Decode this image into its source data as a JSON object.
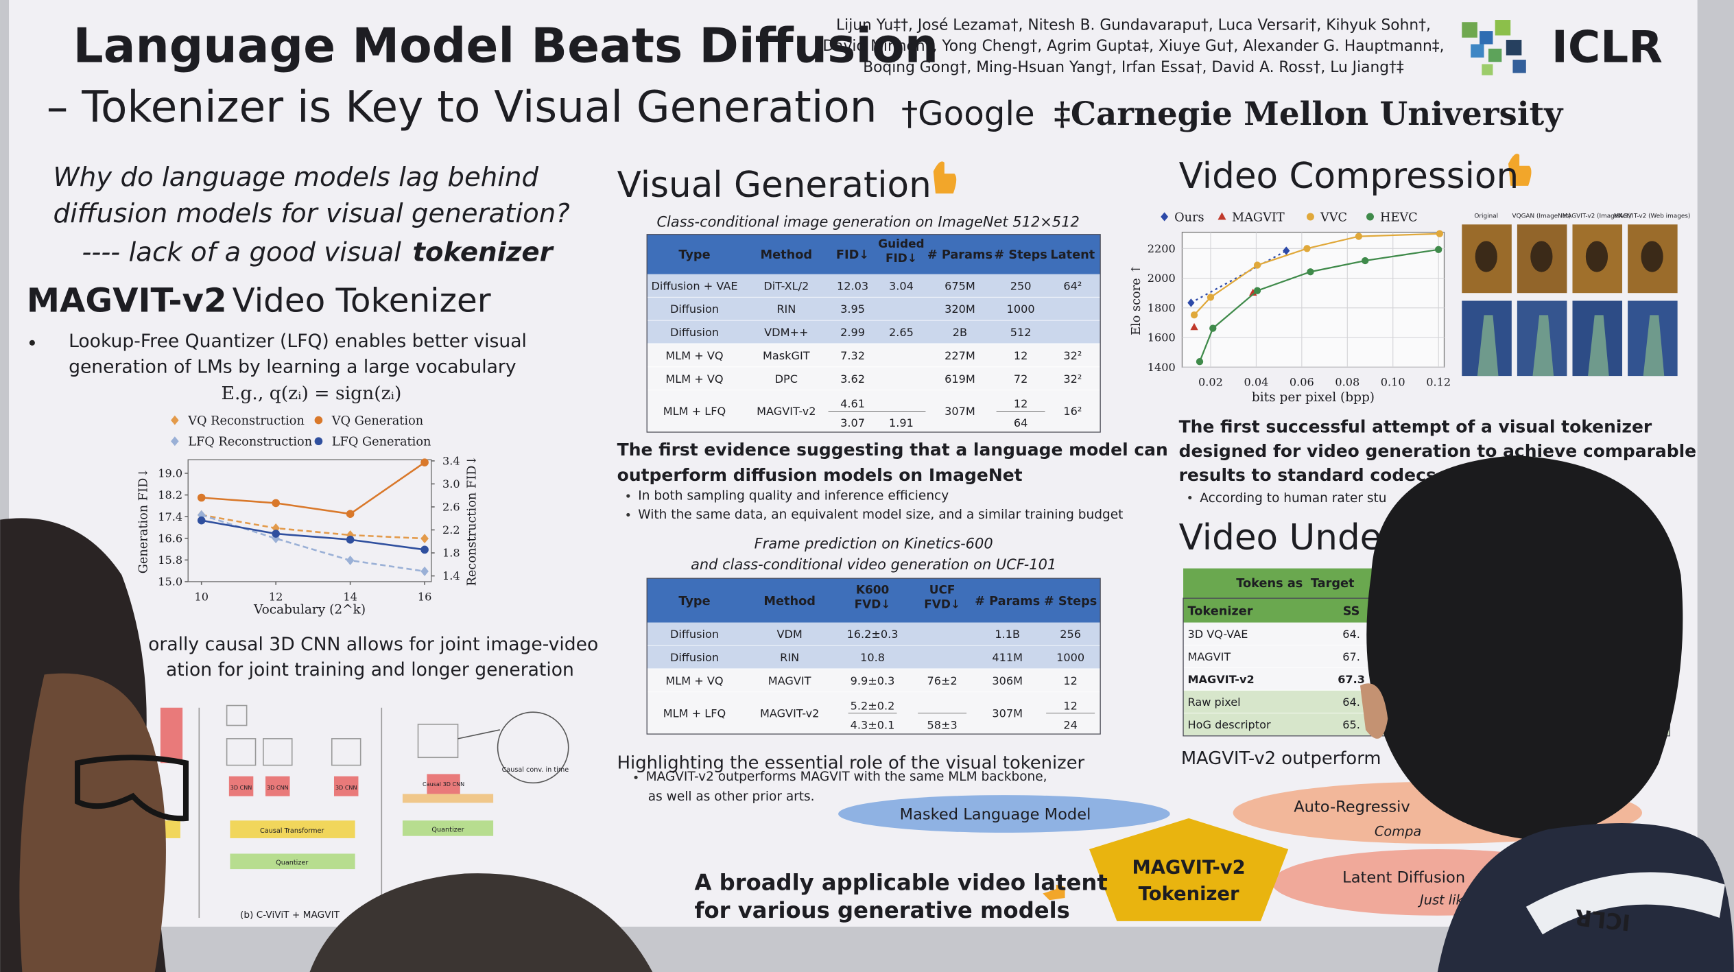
{
  "header": {
    "title": [
      "Language Model Beats Diffusion",
      "– Tokenizer is Key to Visual Generation"
    ],
    "authors": [
      "Lijun Yu‡†, José Lezama†, Nitesh B. Gundavarapu†, Luca Versari†, Kihyuk Sohn†,",
      "David Minnen†, Yong Cheng†, Agrim Gupta‡, Xiuye Gu†, Alexander G. Hauptmann‡,",
      "Boqing Gong†, Ming-Hsuan Yang†, Irfan Essa†, David A. Ross†, Lu Jiang†‡"
    ],
    "affiliations": [
      "†Google",
      "‡Carnegie Mellon University"
    ],
    "conference": "ICLR"
  },
  "intro": {
    "question": [
      "Why do language models lag behind",
      "diffusion models for visual generation?",
      "---- lack of a good visual"
    ],
    "emphasis": "tokenizer"
  },
  "tokenizer": {
    "title_bold": "MAGVIT-v2",
    "title_rest": "Video Tokenizer",
    "bullet1": [
      "Lookup-Free Quantizer (LFQ) enables better visual",
      "generation of LMs by learning a large vocabulary",
      "E.g., q(zᵢ) = sign(zᵢ)"
    ],
    "bullet2": [
      "orally causal 3D CNN allows for joint image-video",
      "ation for joint training and longer generation"
    ],
    "diagram": {
      "causal_transformer": "Causal Transformer",
      "quantizer": "Quantizer",
      "cnn": "3D CNN",
      "causal_cnn": "Causal 3D CNN",
      "causal_conv": "Causal conv. in time",
      "caption": "(b) C-ViViT + MAGVIT"
    }
  },
  "chart_data": [
    {
      "type": "line",
      "x": [
        10,
        12,
        14,
        16
      ],
      "xlim": [
        9.64,
        16.18
      ],
      "xticks": [
        10,
        12,
        14,
        16
      ],
      "xlabel": "Vocabulary (2^k)",
      "ylabel": "Generation FID↓",
      "y2label": "Reconstruction FID↓",
      "ylim": [
        15,
        19.5
      ],
      "yticks": [
        {
          "value": 15,
          "label": "15.0"
        },
        15.8,
        16.6,
        17.4,
        18.2,
        {
          "value": 19,
          "label": "19.0"
        }
      ],
      "y2lim": [
        1.3,
        3.42
      ],
      "y2ticks": [
        1.4,
        1.8,
        2.2,
        2.6,
        {
          "value": 3,
          "label": "3.0"
        },
        3.4
      ],
      "grid": false,
      "legend": "top",
      "series": [
        {
          "name": "VQ Reconstruction",
          "color": "#e39a4a",
          "marker": "diamond",
          "line": "dashed",
          "axis": "y2",
          "values": [
            2.46,
            2.23,
            2.11,
            2.05
          ]
        },
        {
          "name": "VQ Generation",
          "color": "#d9782a",
          "marker": "circle",
          "line": "solid",
          "values": [
            18.1,
            17.9,
            17.5,
            19.4
          ]
        },
        {
          "name": "LFQ Reconstruction",
          "color": "#9ab0d6",
          "marker": "diamond",
          "line": "dashed",
          "axis": "y2",
          "values": [
            2.46,
            2.05,
            1.67,
            1.48
          ]
        },
        {
          "name": "LFQ Generation",
          "color": "#2f4f9e",
          "marker": "circle",
          "line": "solid",
          "values": [
            17.26,
            16.77,
            16.55,
            16.18
          ]
        }
      ]
    },
    {
      "type": "scatter",
      "xlim": [
        0.0075,
        0.1225
      ],
      "xticks": [
        0.02,
        0.04,
        0.06,
        0.08,
        {
          "value": 0.1,
          "label": "0.10"
        },
        0.12
      ],
      "ylim": [
        1400,
        2310
      ],
      "yticks": [
        1400,
        1600,
        1800,
        2000,
        2200
      ],
      "xlabel": "bits per pixel (bpp)",
      "ylabel": "Elo score ↑",
      "grid": true,
      "legend": "top",
      "series": [
        {
          "name": "Ours",
          "color": "#2c49a8",
          "marker": "diamond",
          "line": "dotted",
          "x": [
            0.0114,
            0.0532
          ],
          "values": [
            1834,
            2185
          ]
        },
        {
          "name": "MAGVIT",
          "color": "#c0392b",
          "marker": "triangle",
          "line": "none",
          "x": [
            0.0128,
            0.0386
          ],
          "values": [
            1669,
            1901
          ]
        },
        {
          "name": "VVC",
          "color": "#e0a83a",
          "marker": "circle",
          "line": "solid",
          "x": [
            0.0128,
            0.02,
            0.0405,
            0.0623,
            0.085,
            0.1205
          ],
          "values": [
            1752,
            1871,
            2088,
            2200,
            2282,
            2300
          ]
        },
        {
          "name": "HEVC",
          "color": "#3f8a4a",
          "marker": "circle",
          "line": "solid",
          "x": [
            0.0152,
            0.021,
            0.0405,
            0.0638,
            0.0878,
            0.12
          ],
          "values": [
            1437,
            1662,
            1916,
            2043,
            2118,
            2193
          ]
        }
      ]
    }
  ],
  "visual_generation": {
    "title": "Visual Generation",
    "table1": {
      "caption": "Class-conditional image generation on ImageNet 512×512",
      "header": [
        "Type",
        "Method",
        "FID↓",
        [
          "Guided",
          "FID↓"
        ],
        "# Params",
        "# Steps",
        "Latent"
      ],
      "rows": [
        [
          "Diffusion + VAE",
          "DiT-XL/2",
          "12.03",
          "3.04",
          "675M",
          "250",
          "64²"
        ],
        [
          "Diffusion",
          "RIN",
          "3.95",
          null,
          "320M",
          "1000",
          null
        ],
        [
          "Diffusion",
          "VDM++",
          "2.99",
          "2.65",
          "2B",
          "512",
          null
        ],
        [
          "MLM + VQ",
          "MaskGIT",
          "7.32",
          null,
          "227M",
          "12",
          "32²"
        ],
        [
          "MLM + VQ",
          "DPC",
          "3.62",
          null,
          "619M",
          "72",
          "32²"
        ],
        [
          "MLM + LFQ",
          "MAGVIT-v2",
          [
            "4.61",
            "3.07"
          ],
          [
            null,
            "1.91"
          ],
          "307M",
          [
            "12",
            "64"
          ],
          "16²"
        ]
      ]
    },
    "finding": [
      "The first evidence suggesting that a language model can",
      "outperform diffusion models on ImageNet"
    ],
    "finding_bullets": [
      "In both sampling quality and inference efficiency",
      "With the same data, an equivalent model size, and a similar training budget"
    ],
    "table2": {
      "caption": [
        "Frame prediction on Kinetics-600",
        "and class-conditional video generation on UCF-101"
      ],
      "header": [
        "Type",
        "Method",
        [
          "K600",
          "FVD↓"
        ],
        [
          "UCF",
          "FVD↓"
        ],
        "# Params",
        "# Steps"
      ],
      "rows": [
        [
          "Diffusion",
          "VDM",
          "16.2±0.3",
          null,
          "1.1B",
          "256"
        ],
        [
          "Diffusion",
          "RIN",
          "10.8",
          null,
          "411M",
          "1000"
        ],
        [
          "MLM + VQ",
          "MAGVIT",
          "9.9±0.3",
          "76±2",
          "306M",
          "12"
        ],
        [
          "MLM + LFQ",
          "MAGVIT-v2",
          [
            "5.2±0.2",
            "4.3±0.1"
          ],
          [
            null,
            "58±3"
          ],
          "307M",
          [
            "12",
            "24"
          ]
        ]
      ]
    },
    "highlight": "Highlighting the essential role of the visual tokenizer",
    "highlight_bullet": [
      "MAGVIT-v2 outperforms MAGVIT with the same MLM backbone,",
      "as well as other prior arts."
    ]
  },
  "video_compression": {
    "title": "Video Compression",
    "image_labels": [
      "Original",
      "VQGAN (ImageNet)",
      "MAGVIT-v2 (ImageNet)",
      "MAGVIT-v2 (Web images)"
    ],
    "finding": [
      "The first successful attempt of a visual tokenizer",
      "designed for video generation to achieve comparable",
      "results to standard codecs"
    ],
    "bullet": "According to human rater stu"
  },
  "video_understanding": {
    "title": "Video Unde",
    "table3": {
      "group_header": [
        "Tokens as",
        "Target"
      ],
      "header": [
        "Tokenizer",
        "SS"
      ],
      "rows": [
        [
          "3D VQ-VAE",
          "64."
        ],
        [
          "MAGVIT",
          "67."
        ],
        [
          "MAGVIT-v2",
          "67.3"
        ],
        [
          "Raw pixel",
          "64."
        ],
        [
          "HoG descriptor",
          "65."
        ]
      ]
    },
    "finding": "MAGVIT-v2 outperform"
  },
  "footer": {
    "mlm": "Masked Language Model",
    "tokenizer": [
      "MAGVIT-v2",
      "Tokenizer"
    ],
    "slogan": [
      "A broadly applicable video latent",
      "for various generative models"
    ],
    "autoregressive": "Auto-Regressiv",
    "autoregressive_note": "Compa",
    "latent_diffusion": "Latent Diffusion",
    "latent_diffusion_note": "Just lik",
    "lanyard": "ICLR"
  }
}
